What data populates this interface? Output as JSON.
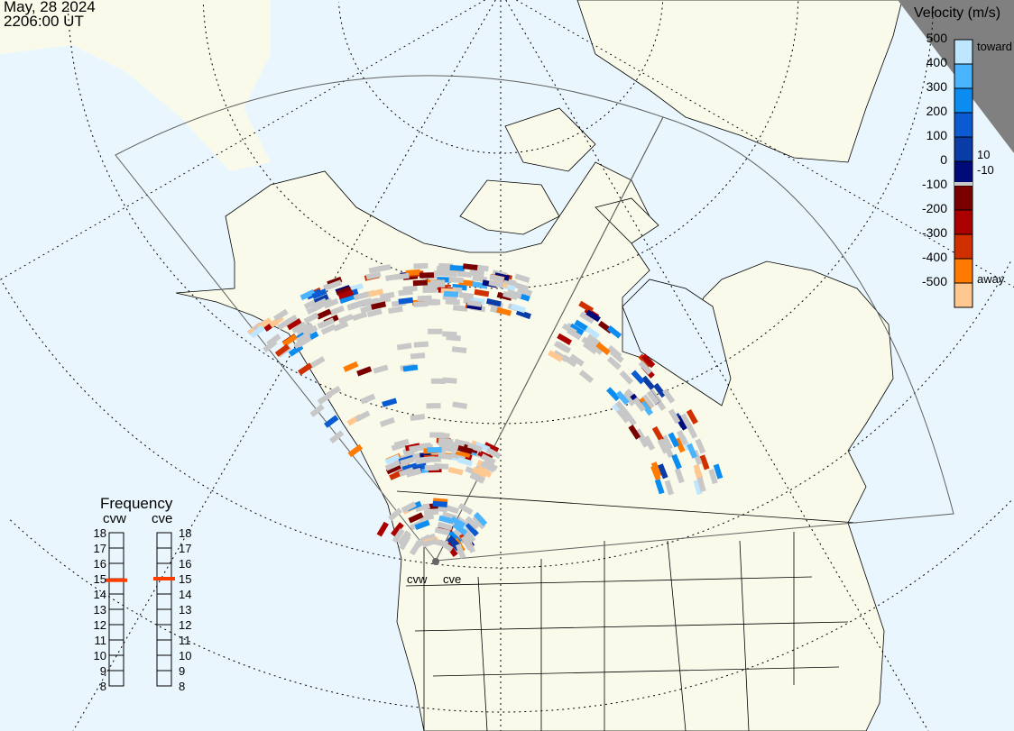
{
  "header": {
    "date": "May, 28 2024",
    "time": "2206:00 UT"
  },
  "colors": {
    "ocean": "#eaf6fe",
    "land": "#fafaea",
    "ground_scatter": "#c8c8c8",
    "frequency_marker": "#ff3c00",
    "dark_region": "#808080"
  },
  "velocity_scale": {
    "title": "Velocity (m/s)",
    "ticks": [
      "500",
      "400",
      "300",
      "200",
      "100",
      "0",
      "-100",
      "-200",
      "-300",
      "-400",
      "-500"
    ],
    "toward_label": "toward",
    "away_label": "away",
    "threshold_pos": "10",
    "threshold_neg": "-10",
    "colors_top_to_bottom": [
      "#bfe6ff",
      "#4ab4ff",
      "#0a8cf0",
      "#0a5ad2",
      "#0a3ca8",
      "#000a78",
      "#7a0000",
      "#aa0000",
      "#d03000",
      "#ff7a00",
      "#ffc890"
    ]
  },
  "frequency": {
    "title": "Frequency",
    "radars": [
      {
        "name": "cvw",
        "value_mhz": 14.9
      },
      {
        "name": "cve",
        "value_mhz": 15.0
      }
    ],
    "ticks": [
      "18",
      "17",
      "16",
      "15",
      "14",
      "13",
      "12",
      "11",
      "10",
      "9",
      "8"
    ]
  },
  "map_labels": {
    "radar_west": "cvw",
    "radar_east": "cve"
  }
}
